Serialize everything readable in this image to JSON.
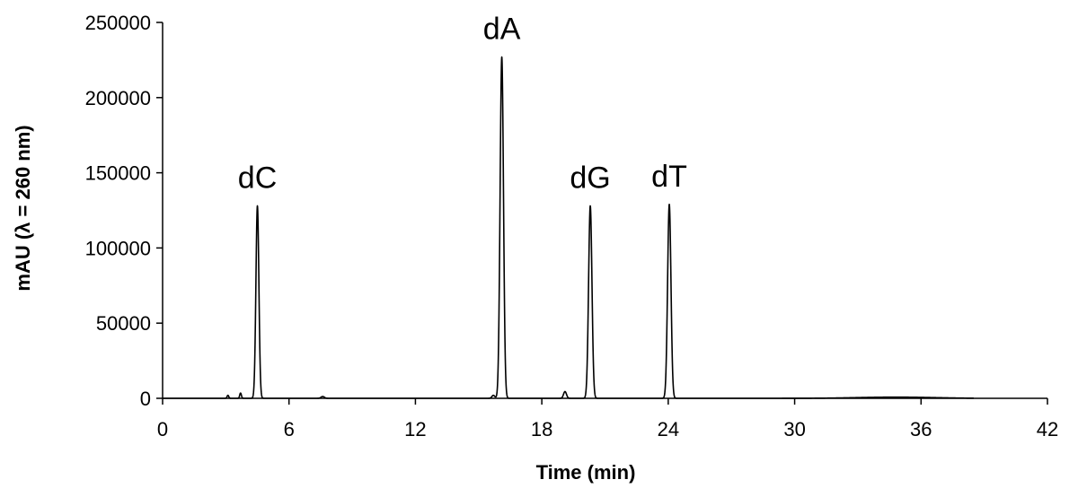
{
  "chart_data": {
    "type": "line",
    "title": "",
    "xlabel": "Time (min)",
    "ylabel": "mAU (λ = 260 nm)",
    "xlim": [
      0,
      42
    ],
    "ylim": [
      0,
      250000
    ],
    "xticks": [
      "0",
      "6",
      "12",
      "18",
      "24",
      "30",
      "36",
      "42"
    ],
    "yticks": [
      "0",
      "50000",
      "100000",
      "150000",
      "200000",
      "250000"
    ],
    "grid": false,
    "legend": "none",
    "line_color": "#000000",
    "series": [
      {
        "baseline_end": 38.5,
        "peaks": [
          {
            "x": 3.1,
            "y": 2000,
            "width": 0.04
          },
          {
            "x": 3.7,
            "y": 3500,
            "width": 0.04
          },
          {
            "x": 4.5,
            "y": 128000,
            "width": 0.07
          },
          {
            "x": 7.6,
            "y": 1200,
            "width": 0.08
          },
          {
            "x": 15.7,
            "y": 2000,
            "width": 0.07
          },
          {
            "x": 16.1,
            "y": 227000,
            "width": 0.08
          },
          {
            "x": 19.1,
            "y": 4500,
            "width": 0.07
          },
          {
            "x": 20.3,
            "y": 128000,
            "width": 0.08
          },
          {
            "x": 24.05,
            "y": 129000,
            "width": 0.08
          },
          {
            "x": 34.8,
            "y": 800,
            "width": 1.8
          }
        ]
      }
    ],
    "annotations": [
      {
        "text": "dC",
        "x": 4.5,
        "y": 128000
      },
      {
        "text": "dA",
        "x": 16.1,
        "y": 227000
      },
      {
        "text": "dG",
        "x": 20.3,
        "y": 128000
      },
      {
        "text": "dT",
        "x": 24.05,
        "y": 129000
      }
    ]
  }
}
